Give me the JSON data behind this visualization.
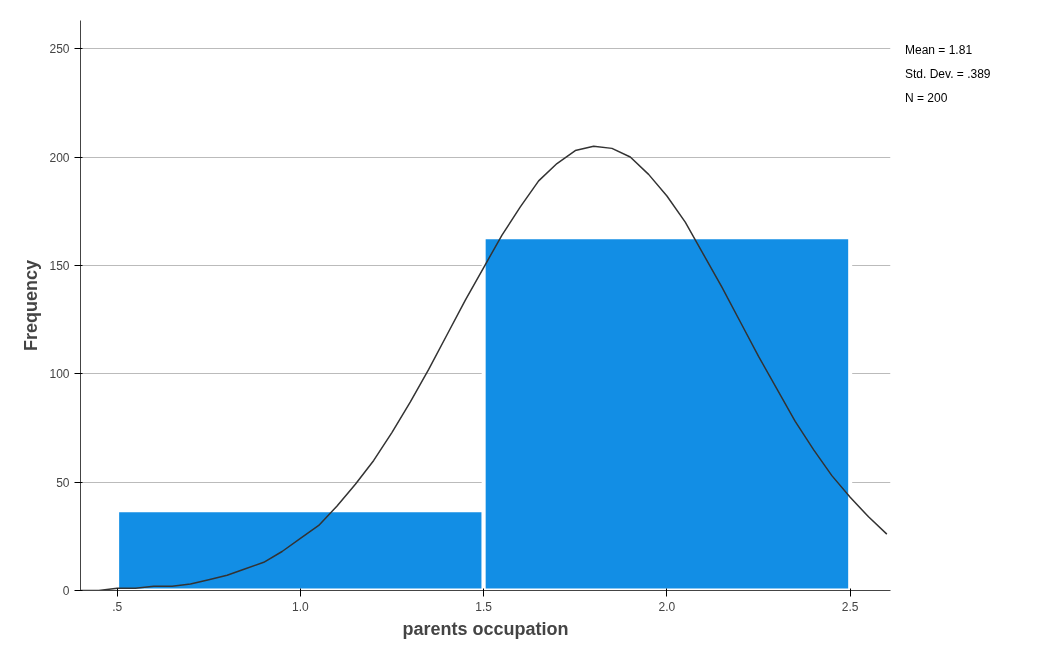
{
  "chart_data": {
    "type": "histogram",
    "xlabel": "parents occupation",
    "ylabel": "Frequency",
    "bins": [
      0.5,
      1.5,
      2.5
    ],
    "values": [
      37,
      163
    ],
    "color": "#128ee5",
    "series": [
      {
        "type": "line",
        "color": "#333333",
        "x": [
          0.4,
          0.45,
          0.5,
          0.55,
          0.6,
          0.65,
          0.7,
          0.75,
          0.8,
          0.85,
          0.9,
          0.95,
          1.0,
          1.05,
          1.1,
          1.15,
          1.2,
          1.25,
          1.3,
          1.35,
          1.4,
          1.45,
          1.5,
          1.55,
          1.6,
          1.65,
          1.7,
          1.75,
          1.8,
          1.85,
          1.9,
          1.95,
          2.0,
          2.05,
          2.1,
          2.15,
          2.2,
          2.25,
          2.3,
          2.35,
          2.4,
          2.45,
          2.5,
          2.55,
          2.6
        ],
        "values": [
          0,
          0,
          1,
          1,
          2,
          2,
          3,
          5,
          7,
          10,
          13,
          18,
          24,
          30,
          39,
          49,
          60,
          73,
          87,
          102,
          118,
          134,
          149,
          164,
          177,
          189,
          197,
          203,
          205,
          204,
          200,
          192,
          182,
          170,
          155,
          140,
          124,
          108,
          93,
          78,
          65,
          53,
          43,
          34,
          26
        ]
      }
    ],
    "xlim": [
      0.4,
      2.61
    ],
    "ylim": [
      0,
      263
    ],
    "xticks": [
      {
        "value": 0.5,
        "label": ".5"
      },
      {
        "value": 1.0,
        "label": "1.0"
      },
      {
        "value": 1.5,
        "label": "1.5"
      },
      {
        "value": 2.0,
        "label": "2.0"
      },
      {
        "value": 2.5,
        "label": "2.5"
      }
    ],
    "yticks": [
      0,
      50,
      100,
      150,
      200,
      250
    ],
    "grid": "y",
    "annotations": [
      "Mean = 1.81",
      "Std. Dev. = .389",
      "N = 200"
    ]
  }
}
